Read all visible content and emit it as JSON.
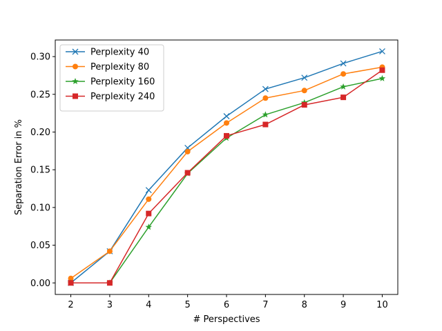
{
  "chart_data": {
    "type": "line",
    "title": "",
    "xlabel": "# Perspectives",
    "ylabel": "Separation Error in %",
    "x": [
      2,
      3,
      4,
      5,
      6,
      7,
      8,
      9,
      10
    ],
    "xlim": [
      1.6,
      10.4
    ],
    "ylim": [
      -0.0153,
      0.322
    ],
    "xticks": [
      "2",
      "3",
      "4",
      "5",
      "6",
      "7",
      "8",
      "9",
      "10"
    ],
    "yticks": [
      "0.00",
      "0.05",
      "0.10",
      "0.15",
      "0.20",
      "0.25",
      "0.30"
    ],
    "grid": false,
    "legend_position": "top-left",
    "series": [
      {
        "name": "Perplexity 40",
        "color": "#1f77b4",
        "marker": "x",
        "values": [
          0.0,
          0.042,
          0.123,
          0.179,
          0.221,
          0.257,
          0.272,
          0.291,
          0.307
        ]
      },
      {
        "name": "Perplexity 80",
        "color": "#ff7f0e",
        "marker": "circle",
        "values": [
          0.006,
          0.042,
          0.111,
          0.174,
          0.212,
          0.245,
          0.255,
          0.277,
          0.286
        ]
      },
      {
        "name": "Perplexity 160",
        "color": "#2ca02c",
        "marker": "star",
        "values": [
          0.0,
          0.0,
          0.074,
          0.145,
          0.192,
          0.223,
          0.239,
          0.26,
          0.271
        ]
      },
      {
        "name": "Perplexity 240",
        "color": "#d62728",
        "marker": "square",
        "values": [
          0.0,
          0.0,
          0.092,
          0.146,
          0.195,
          0.21,
          0.236,
          0.246,
          0.282
        ]
      }
    ]
  }
}
